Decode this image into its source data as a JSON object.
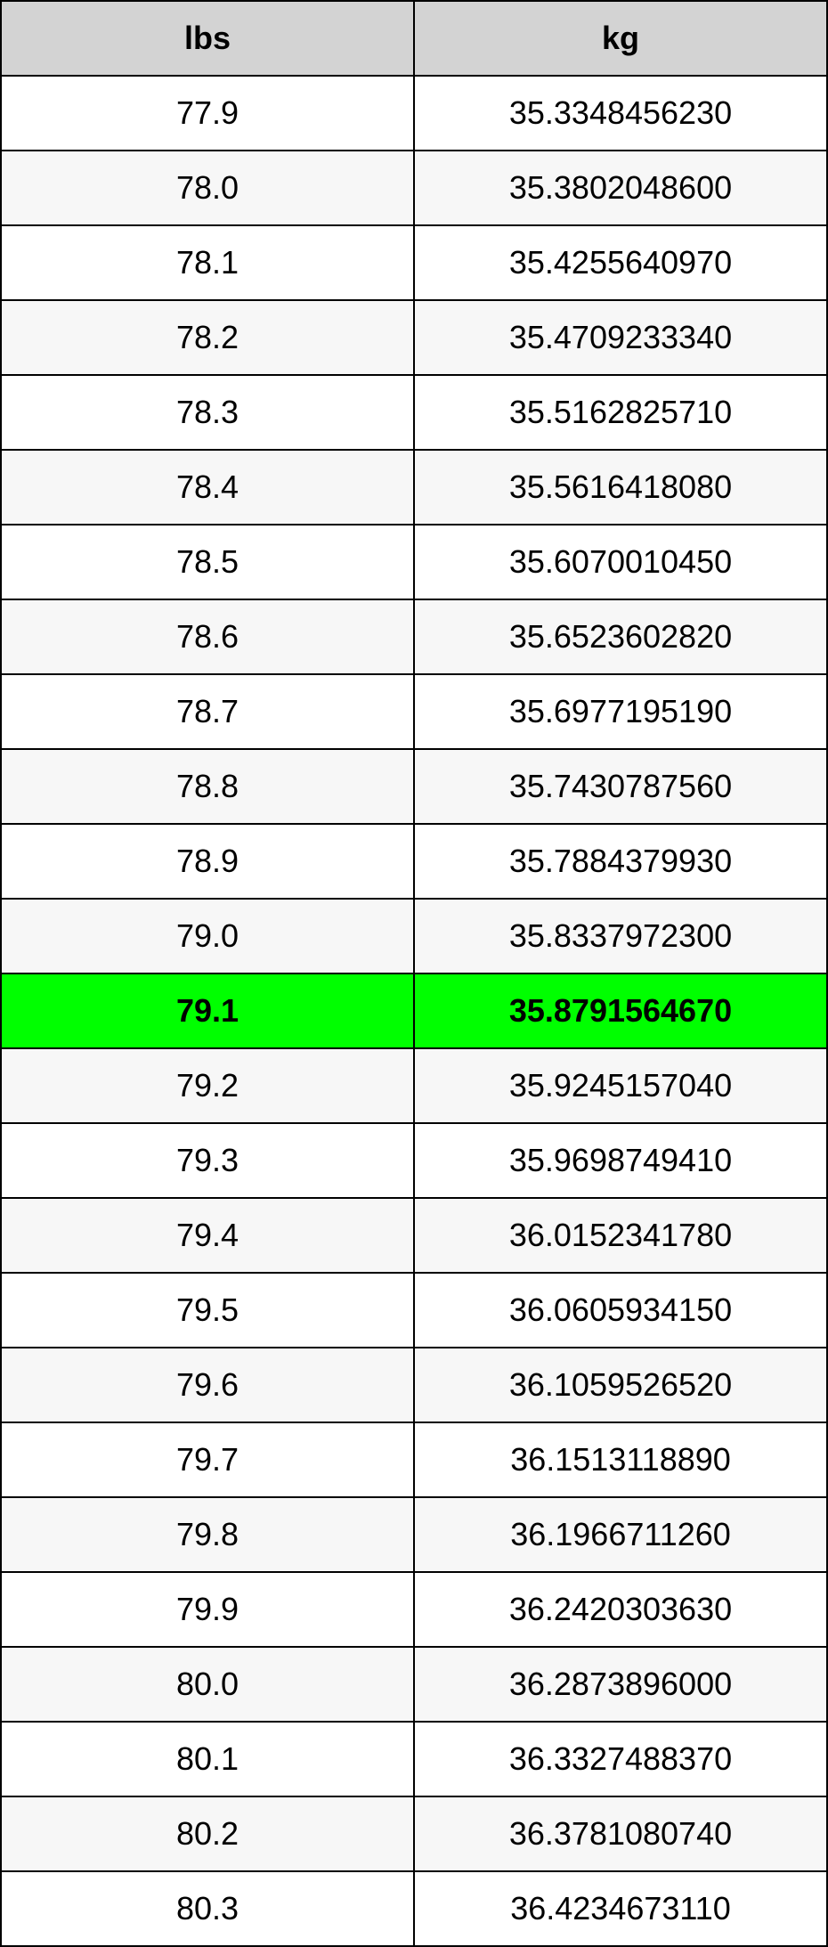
{
  "table": {
    "type": "table",
    "columns": [
      {
        "label": "lbs",
        "align": "center"
      },
      {
        "label": "kg",
        "align": "center"
      }
    ],
    "header_background": "#d3d3d3",
    "header_fontsize": 36,
    "header_fontweight": "bold",
    "cell_fontsize": 36,
    "border_color": "#000000",
    "border_width": 2,
    "row_alt_background": "#f7f7f7",
    "row_background": "#ffffff",
    "highlight_background": "#00ff00",
    "highlight_fontweight": "bold",
    "highlighted_row_index": 12,
    "rows": [
      {
        "lbs": "77.9",
        "kg": "35.3348456230"
      },
      {
        "lbs": "78.0",
        "kg": "35.3802048600"
      },
      {
        "lbs": "78.1",
        "kg": "35.4255640970"
      },
      {
        "lbs": "78.2",
        "kg": "35.4709233340"
      },
      {
        "lbs": "78.3",
        "kg": "35.5162825710"
      },
      {
        "lbs": "78.4",
        "kg": "35.5616418080"
      },
      {
        "lbs": "78.5",
        "kg": "35.6070010450"
      },
      {
        "lbs": "78.6",
        "kg": "35.6523602820"
      },
      {
        "lbs": "78.7",
        "kg": "35.6977195190"
      },
      {
        "lbs": "78.8",
        "kg": "35.7430787560"
      },
      {
        "lbs": "78.9",
        "kg": "35.7884379930"
      },
      {
        "lbs": "79.0",
        "kg": "35.8337972300"
      },
      {
        "lbs": "79.1",
        "kg": "35.8791564670"
      },
      {
        "lbs": "79.2",
        "kg": "35.9245157040"
      },
      {
        "lbs": "79.3",
        "kg": "35.9698749410"
      },
      {
        "lbs": "79.4",
        "kg": "36.0152341780"
      },
      {
        "lbs": "79.5",
        "kg": "36.0605934150"
      },
      {
        "lbs": "79.6",
        "kg": "36.1059526520"
      },
      {
        "lbs": "79.7",
        "kg": "36.1513118890"
      },
      {
        "lbs": "79.8",
        "kg": "36.1966711260"
      },
      {
        "lbs": "79.9",
        "kg": "36.2420303630"
      },
      {
        "lbs": "80.0",
        "kg": "36.2873896000"
      },
      {
        "lbs": "80.1",
        "kg": "36.3327488370"
      },
      {
        "lbs": "80.2",
        "kg": "36.3781080740"
      },
      {
        "lbs": "80.3",
        "kg": "36.4234673110"
      }
    ]
  }
}
